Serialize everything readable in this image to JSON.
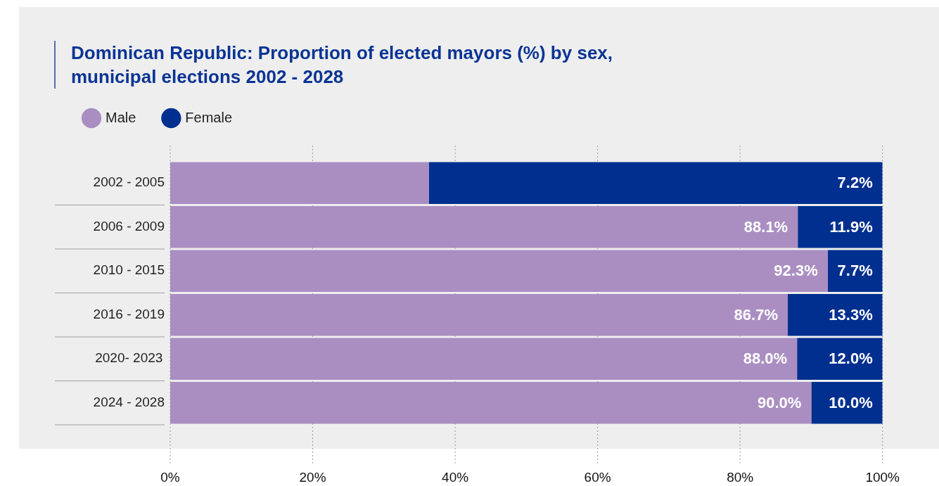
{
  "chart_data": {
    "type": "bar",
    "orientation": "horizontal",
    "stacked": true,
    "title": "Dominican Republic: Proportion of elected mayors (%) by sex, municipal elections 2002 - 2028",
    "categories": [
      "2002 - 2005",
      "2006 - 2009",
      "2010 - 2015",
      "2016 - 2019",
      "2020- 2023",
      "2024 - 2028"
    ],
    "series": [
      {
        "name": "Male",
        "color": "#aa8ec2",
        "values": [
          36.3,
          88.1,
          92.3,
          86.7,
          88.0,
          90.0
        ],
        "value_labels": [
          null,
          "88.1%",
          "92.3%",
          "86.7%",
          "88.0%",
          "90.0%"
        ]
      },
      {
        "name": "Female",
        "color": "#002f8f",
        "values": [
          63.7,
          11.9,
          7.7,
          13.3,
          12.0,
          10.0
        ],
        "value_labels": [
          null,
          "11.9%",
          "7.7%",
          "13.3%",
          "12.0%",
          "10.0%"
        ]
      }
    ],
    "xlim": [
      0,
      100
    ],
    "xticks": [
      {
        "value": 0,
        "label": "0%"
      },
      {
        "value": 20,
        "label": "20%"
      },
      {
        "value": 40,
        "label": "40%"
      },
      {
        "value": 60,
        "label": "60%"
      },
      {
        "value": 80,
        "label": "80%"
      },
      {
        "value": 100,
        "label": "100%"
      }
    ],
    "grid": "x",
    "legend": "top left",
    "annotations": [
      {
        "text": "7.2%",
        "x": 100,
        "y": "2002 - 2005"
      }
    ]
  }
}
